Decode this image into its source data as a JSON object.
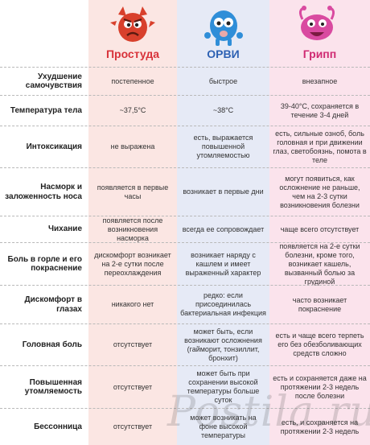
{
  "columns": [
    {
      "title": "Простуда",
      "color": "#d8323a"
    },
    {
      "title": "ОРВИ",
      "color": "#2d61b3"
    },
    {
      "title": "Грипп",
      "color": "#cf2a72"
    }
  ],
  "rows": [
    {
      "label": "Ухудшение самочувствия",
      "values": [
        "постепенное",
        "быстрое",
        "внезапное"
      ]
    },
    {
      "label": "Температура тела",
      "values": [
        "~37,5°C",
        "~38°C",
        "39-40°C, сохраняется в течение 3-4 дней"
      ]
    },
    {
      "label": "Интоксикация",
      "values": [
        "не выражена",
        "есть, выражается повышенной утомляемостью",
        "есть, сильные озноб, боль головная и при движении глаз, светобоязнь, помота в теле"
      ]
    },
    {
      "label": "Насморк и заложенность носа",
      "values": [
        "появляется в первые часы",
        "возникает в первые дни",
        "могут появиться, как осложнение не раньше, чем на 2-3 сутки возникновения болезни"
      ]
    },
    {
      "label": "Чихание",
      "values": [
        "появляется после возникновения насморка",
        "всегда ее сопровождает",
        "чаще всего отсутствует"
      ]
    },
    {
      "label": "Боль в горле и его покраснение",
      "values": [
        "дискомфорт возникает на 2-е сутки после переохлаждения",
        "возникает наряду с кашлем и имеет выраженный характер",
        "появляется на 2-е сутки болезни, кроме того, возникает кашель, вызванный болью за грудиной"
      ]
    },
    {
      "label": "Дискомфорт в глазах",
      "values": [
        "никакого нет",
        "редко: если присоединилась бактериальная инфекция",
        "часто возникает покраснение"
      ]
    },
    {
      "label": "Головная боль",
      "values": [
        "отсутствует",
        "может быть, если возникают осложнения (гайморит, тонзиллит, бронхит)",
        "есть и чаще всего терпеть его без обезболивающих средств сложно"
      ]
    },
    {
      "label": "Повышенная утомляемость",
      "values": [
        "отсутствует",
        "может быть при сохранении высокой температуры больше суток",
        "есть и сохраняется даже на протяжении 2-3 недель после болезни"
      ]
    },
    {
      "label": "Бессонница",
      "values": [
        "отсутствует",
        "может возникать на фоне высокой температуры",
        "есть, и сохраняется на протяжении 2-3 недель"
      ]
    }
  ],
  "watermark": "Postila.ru"
}
